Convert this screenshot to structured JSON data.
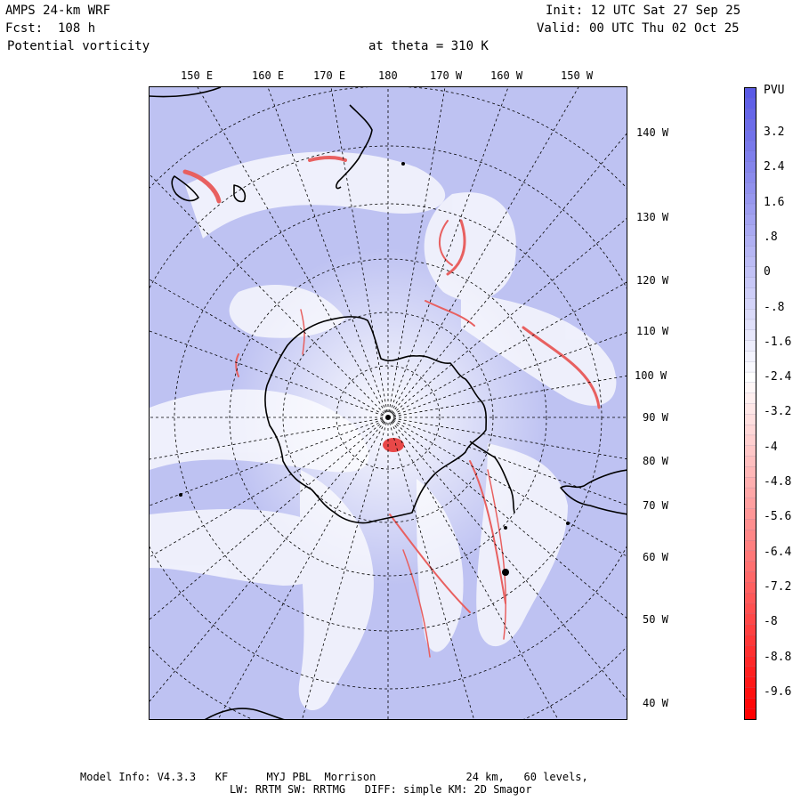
{
  "header": {
    "model": "AMPS 24-km WRF",
    "forecast": "Fcst:  108 h",
    "field": "Potential vorticity",
    "level": "at theta = 310 K",
    "init": "Init: 12 UTC Sat 27 Sep 25",
    "valid": "Valid: 00 UTC Thu 02 Oct 25"
  },
  "map": {
    "projection": "polar-stereographic-south",
    "top_lon_labels": [
      "150 E",
      "160 E",
      "170 E",
      "180",
      "170 W",
      "160 W",
      "150 W"
    ],
    "right_lon_labels": [
      "140 W",
      "130 W",
      "120 W",
      "110 W",
      "100 W",
      "90 W",
      "80 W",
      "70 W",
      "60 W",
      "50 W",
      "40 W"
    ]
  },
  "colorbar": {
    "unit": "PVU",
    "labels": [
      "3.2",
      "2.4",
      "1.6",
      ".8",
      "0",
      "-.8",
      "-1.6",
      "-2.4",
      "-3.2",
      "-4",
      "-4.8",
      "-5.6",
      "-6.4",
      "-7.2",
      "-8",
      "-8.8",
      "-9.6"
    ],
    "top_color": "#5a5ae6",
    "mid_color": "#ffffff",
    "bottom_color": "#ff0000"
  },
  "footer": {
    "line1": "Model Info: V4.3.3   KF      MYJ PBL  Morrison              24 km,   60 levels,",
    "line2": "LW: RRTM SW: RRTMG   DIFF: simple KM: 2D Smagor"
  },
  "colors": {
    "background_pv": "#c4c8f4",
    "positive_pv": "#e86060",
    "coastline": "#000000"
  }
}
